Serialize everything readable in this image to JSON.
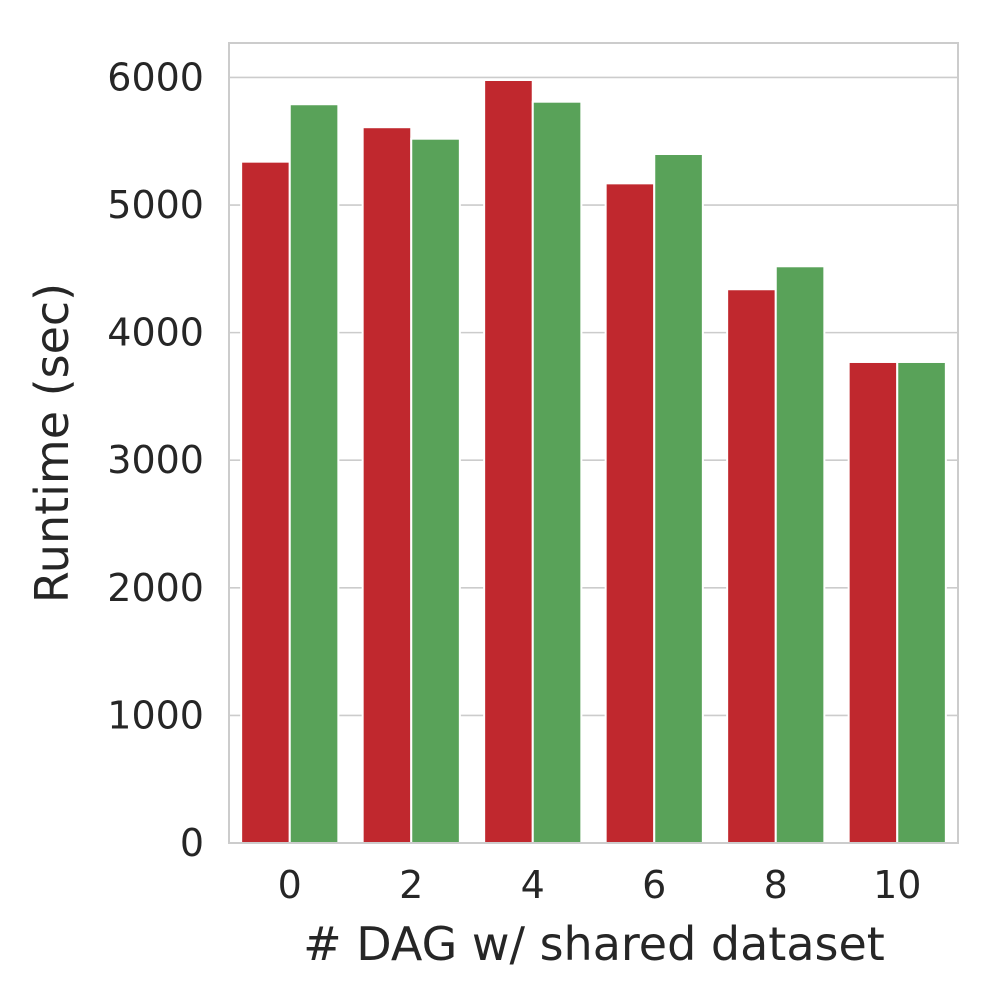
{
  "chart_data": {
    "type": "bar",
    "title": "",
    "xlabel": "# DAG w/ shared dataset",
    "ylabel": "Runtime (sec)",
    "categories": [
      "0",
      "2",
      "4",
      "6",
      "8",
      "10"
    ],
    "series": [
      {
        "values": [
          5340,
          5610,
          5980,
          5170,
          4340,
          3770
        ],
        "color": "#c0282e"
      },
      {
        "values": [
          5790,
          5520,
          5810,
          5400,
          4520,
          3770
        ],
        "color": "#59a259"
      }
    ],
    "ylim": [
      0,
      6270
    ],
    "yticks": [
      0,
      1000,
      2000,
      3000,
      4000,
      5000,
      6000
    ],
    "grid": true,
    "legend": "none"
  }
}
